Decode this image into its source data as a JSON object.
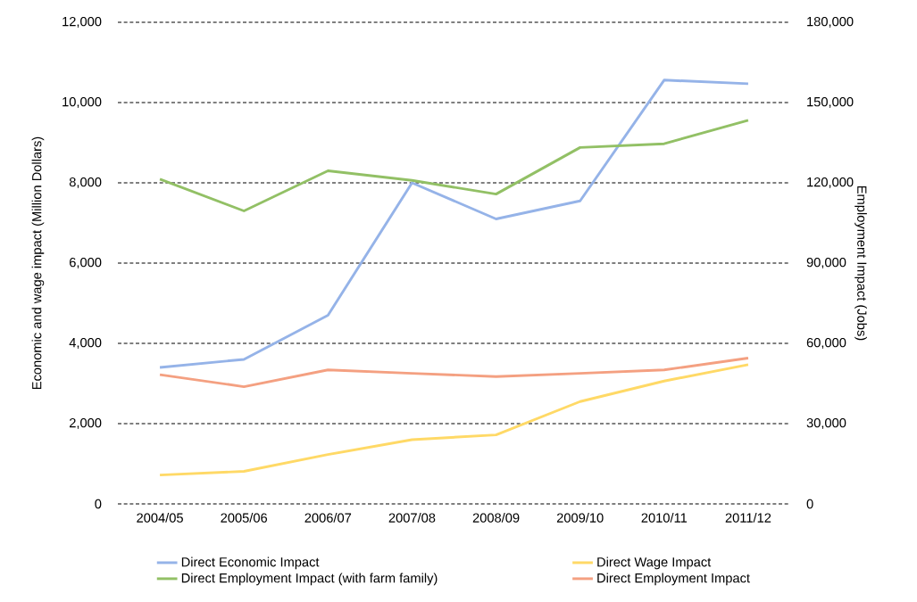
{
  "chart_data": {
    "type": "line",
    "categories": [
      "2004/05",
      "2005/06",
      "2006/07",
      "2007/08",
      "2008/09",
      "2009/10",
      "2010/11",
      "2011/12"
    ],
    "ylabel": "Economic and wage impact (Million Dollars)",
    "y2label": "Employment Impact (Jobs)",
    "series": [
      {
        "name": "Direct Economic Impact",
        "color": "#95b3e8",
        "values": [
          3400,
          3600,
          4700,
          8000,
          7100,
          7550,
          10560,
          10470
        ]
      },
      {
        "name": "Direct Wage Impact",
        "color": "#ffd966",
        "values": [
          720,
          810,
          1230,
          1600,
          1720,
          2550,
          3060,
          3470
        ]
      },
      {
        "name": "Direct Employment Impact (with farm family)",
        "color": "#92c065",
        "axis": "y2",
        "values": [
          121400,
          109500,
          124500,
          120900,
          115800,
          133200,
          134600,
          143400
        ]
      },
      {
        "name": "Direct Employment Impact",
        "color": "#f4a081",
        "axis": "y2",
        "values": [
          48300,
          43800,
          50100,
          48800,
          47600,
          48800,
          50100,
          54500
        ]
      }
    ],
    "ylim": [
      0,
      12000
    ],
    "yticks": [
      {
        "value": 0,
        "label": "0"
      },
      {
        "value": 2000,
        "label": "2,000"
      },
      {
        "value": 4000,
        "label": "4,000"
      },
      {
        "value": 6000,
        "label": "6,000"
      },
      {
        "value": 8000,
        "label": "8,000"
      },
      {
        "value": 10000,
        "label": "10,000"
      },
      {
        "value": 12000,
        "label": "12,000"
      }
    ],
    "y2lim": [
      0,
      180000
    ],
    "y2ticks": [
      {
        "value": 0,
        "label": "0"
      },
      {
        "value": 30000,
        "label": "30,000"
      },
      {
        "value": 60000,
        "label": "60,000"
      },
      {
        "value": 90000,
        "label": "90,000"
      },
      {
        "value": 120000,
        "label": "120,000"
      },
      {
        "value": 150000,
        "label": "150,000"
      },
      {
        "value": 180000,
        "label": "180,000"
      }
    ],
    "grid": "y",
    "legend": "bottom",
    "marker": "none",
    "line_style": "solid"
  }
}
